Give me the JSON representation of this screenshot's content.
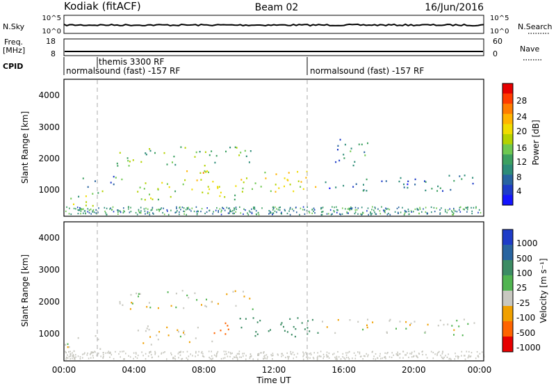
{
  "header": {
    "station": "Kodiak (fitACF)",
    "beam": "Beam 02",
    "date": "16/Jun/2016"
  },
  "top_panels": {
    "nsky_label": "N.Sky",
    "nsky_ticks": [
      "10^5",
      "10^0"
    ],
    "nsearch_label": "N.Search",
    "nsearch_ticks": [
      "10^5",
      "10^0"
    ],
    "freq_label": "Freq.",
    "freq_unit": "[MHz]",
    "freq_ticks": [
      "18",
      "8"
    ],
    "nave_label": "Nave",
    "nave_ticks": [
      "60",
      "0"
    ],
    "cpid_label": "CPID",
    "cpid_segments": [
      {
        "start_hour": 0.0,
        "label": "normalsound (fast) -157 RF"
      },
      {
        "start_hour": 1.9,
        "label": "themis 3300 RF"
      },
      {
        "start_hour": 14.0,
        "label": "normalsound (fast) -157 RF"
      }
    ]
  },
  "axes": {
    "x_ticks": [
      "00:00",
      "04:00",
      "08:00",
      "12:00",
      "16:00",
      "20:00",
      "00:00"
    ],
    "x_label": "Time UT",
    "y_label": "Slant Range [km]",
    "y_ticks": [
      "1000",
      "2000",
      "3000",
      "4000"
    ]
  },
  "power_colorbar": {
    "label": "Power [dB]",
    "ticks": [
      "28",
      "24",
      "20",
      "16",
      "12",
      "8",
      "4"
    ],
    "colors": [
      "#e60000",
      "#ff3c00",
      "#ff7d00",
      "#ffb400",
      "#f0dc00",
      "#b4d200",
      "#6ec850",
      "#3ca060",
      "#2d8c78",
      "#2864a0",
      "#1e3cc8",
      "#1414ff"
    ]
  },
  "velocity_colorbar": {
    "label": "Velocity [m s⁻¹]",
    "ticks": [
      "1000",
      "500",
      "100",
      "25",
      "-25",
      "-100",
      "-500",
      "-1000"
    ],
    "colors": [
      "#1e3cc8",
      "#2864a0",
      "#3c8c64",
      "#50b450",
      "#c8c8c0",
      "#f0a000",
      "#ff6400",
      "#e60000"
    ]
  },
  "chart_data": [
    {
      "type": "heatmap",
      "title": "Power",
      "x": "time (UT hours)",
      "xlim": [
        0,
        24
      ],
      "ylim": [
        200,
        4500
      ],
      "colorbar_label": "Power [dB]",
      "clim": [
        0,
        30
      ],
      "echo_regions": [
        {
          "t0": 0.0,
          "t1": 2.2,
          "r0": 300,
          "r1": 1000,
          "power": 14
        },
        {
          "t0": 1.0,
          "t1": 3.5,
          "r0": 1100,
          "r1": 1500,
          "power": 9
        },
        {
          "t0": 3.0,
          "t1": 11.0,
          "r0": 1800,
          "r1": 2400,
          "power": 12
        },
        {
          "t0": 4.0,
          "t1": 10.0,
          "r0": 700,
          "r1": 1300,
          "power": 15
        },
        {
          "t0": 5.5,
          "t1": 8.5,
          "r0": 1200,
          "r1": 1700,
          "power": 18
        },
        {
          "t0": 10.0,
          "t1": 14.5,
          "r0": 900,
          "r1": 1700,
          "power": 17
        },
        {
          "t0": 14.5,
          "t1": 23.5,
          "r0": 1000,
          "r1": 1500,
          "power": 7
        },
        {
          "t0": 15.5,
          "t1": 17.5,
          "r0": 1800,
          "r1": 2800,
          "power": 8
        }
      ]
    },
    {
      "type": "heatmap",
      "title": "Velocity",
      "x": "time (UT hours)",
      "xlim": [
        0,
        24
      ],
      "ylim": [
        200,
        4500
      ],
      "colorbar_label": "Velocity [m s⁻¹]",
      "clim": [
        -1000,
        1000
      ],
      "echo_regions": [
        {
          "t0": 0.0,
          "t1": 2.2,
          "r0": 300,
          "r1": 1000,
          "velocity": 0
        },
        {
          "t0": 3.0,
          "t1": 11.0,
          "r0": 1800,
          "r1": 2400,
          "velocity": 0
        },
        {
          "t0": 4.0,
          "t1": 8.5,
          "r0": 700,
          "r1": 1300,
          "velocity": 0
        },
        {
          "t0": 8.5,
          "t1": 10.0,
          "r0": 900,
          "r1": 1400,
          "velocity": -300
        },
        {
          "t0": 10.0,
          "t1": 14.5,
          "r0": 900,
          "r1": 1700,
          "velocity": 150
        },
        {
          "t0": 14.5,
          "t1": 23.5,
          "r0": 1000,
          "r1": 1500,
          "velocity": 0
        }
      ]
    }
  ]
}
